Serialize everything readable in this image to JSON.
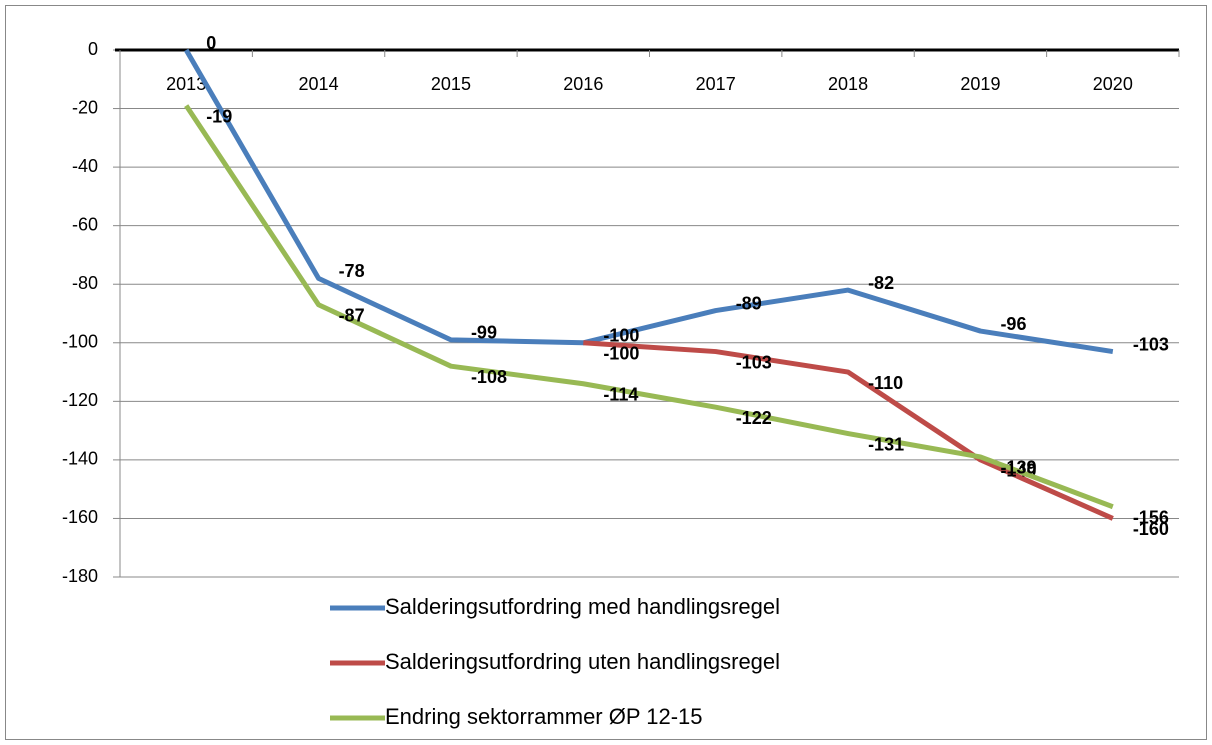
{
  "chart_data": {
    "type": "line",
    "categories": [
      "2013",
      "2014",
      "2015",
      "2016",
      "2017",
      "2018",
      "2019",
      "2020"
    ],
    "series": [
      {
        "name": "Salderingsutfordring med handlingsregel",
        "color": "#4a7ebb",
        "values": [
          0,
          -78,
          -99,
          -100,
          -89,
          -82,
          -96,
          -103
        ]
      },
      {
        "name": "Salderingsutfordring uten handlingsregel",
        "color": "#be4b48",
        "values": [
          null,
          null,
          null,
          -100,
          -103,
          -110,
          -140,
          -160
        ]
      },
      {
        "name": "Endring sektorrammer ØP 12-15",
        "color": "#98b954",
        "values": [
          -19,
          -87,
          -108,
          -114,
          -122,
          -131,
          -139,
          -156
        ]
      }
    ],
    "ylim": [
      -180,
      0
    ],
    "yticks": [
      0,
      -20,
      -40,
      -60,
      -80,
      -100,
      -120,
      -140,
      -160,
      -180
    ],
    "grid": true,
    "legend": "bottom"
  }
}
